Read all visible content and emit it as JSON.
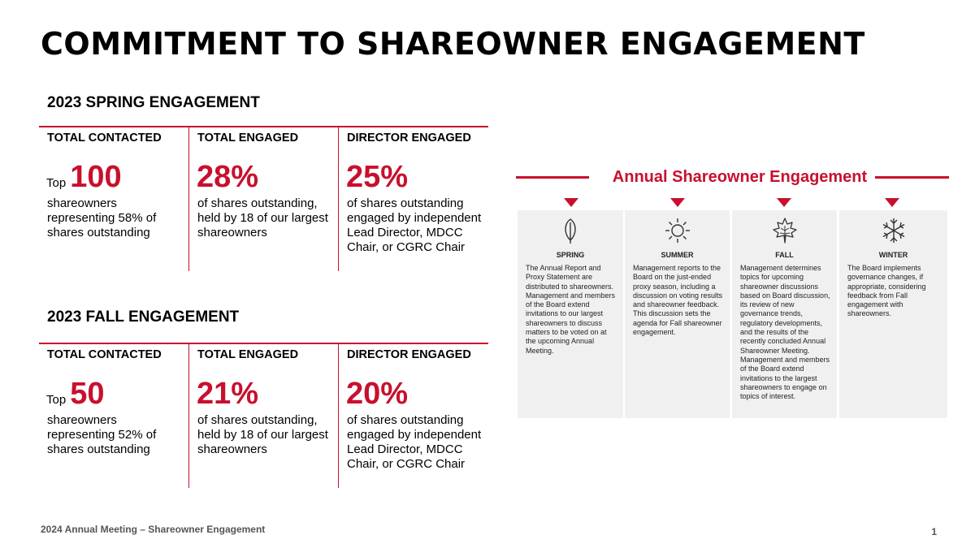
{
  "title": "COMMITMENT TO SHAREOWNER ENGAGEMENT",
  "spring": {
    "heading": "2023 SPRING ENGAGEMENT",
    "columns": [
      {
        "header": "TOTAL CONTACTED",
        "prefix": "Top",
        "value": "100",
        "desc": "shareowners representing 58% of shares outstanding"
      },
      {
        "header": "TOTAL ENGAGED",
        "value": "28%",
        "desc": "of shares outstanding, held by 18 of our largest shareowners"
      },
      {
        "header": "DIRECTOR ENGAGED",
        "value": "25%",
        "desc": "of shares outstanding engaged by independent Lead Director, MDCC Chair, or CGRC Chair"
      }
    ]
  },
  "fall": {
    "heading": "2023 FALL ENGAGEMENT",
    "columns": [
      {
        "header": "TOTAL CONTACTED",
        "prefix": "Top",
        "value": "50",
        "desc": "shareowners representing 52% of shares outstanding"
      },
      {
        "header": "TOTAL ENGAGED",
        "value": "21%",
        "desc": "of shares outstanding, held by 18 of our largest shareowners"
      },
      {
        "header": "DIRECTOR ENGAGED",
        "value": "20%",
        "desc": "of shares outstanding engaged by independent Lead Director, MDCC Chair, or CGRC Chair"
      }
    ]
  },
  "annual": {
    "title": "Annual Shareowner Engagement",
    "seasons": [
      {
        "name": "SPRING",
        "icon": "leaf-icon",
        "text": "The Annual Report and Proxy Statement are distributed to shareowners. Management and members of the Board extend invitations to our largest shareowners to discuss matters to be voted on at the upcoming Annual Meeting."
      },
      {
        "name": "SUMMER",
        "icon": "sun-icon",
        "text": "Management reports to the Board on the just-ended proxy season, including a discussion on voting results and shareowner feedback. This discussion sets the agenda for Fall shareowner engagement."
      },
      {
        "name": "FALL",
        "icon": "maple-leaf-icon",
        "text": "Management determines topics for upcoming shareowner discussions based on Board discussion, its review of new governance trends, regulatory developments, and the results of the recently concluded Annual Shareowner Meeting. Management and members of the Board extend invitations to the largest shareowners to engage on topics of interest."
      },
      {
        "name": "WINTER",
        "icon": "snowflake-icon",
        "text": "The Board implements governance changes, if appropriate, considering feedback from Fall engagement with shareowners."
      }
    ]
  },
  "footer": "2024 Annual Meeting – Shareowner Engagement",
  "page_number": "1",
  "colors": {
    "accent": "#c8102e",
    "panel": "#f0f0f0"
  }
}
